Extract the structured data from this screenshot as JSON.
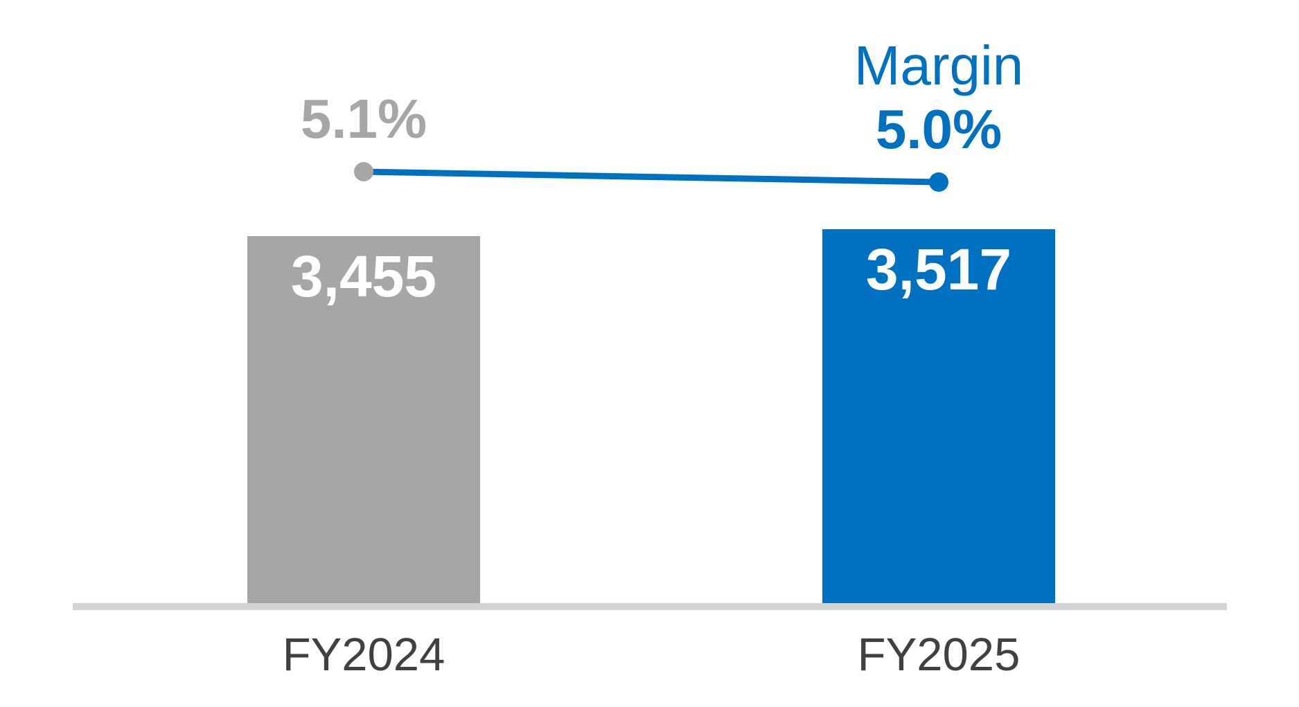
{
  "chart_data": {
    "type": "bar",
    "subtype": "bars-with-line-overlay",
    "categories": [
      "FY2024",
      "FY2025"
    ],
    "series": [
      {
        "type": "bar",
        "values": [
          3455,
          3517
        ],
        "data_labels": [
          "3,455",
          "3,517"
        ],
        "colors": [
          "#a6a6a6",
          "#0070c0"
        ]
      },
      {
        "name": "Margin",
        "type": "line",
        "values": [
          5.1,
          5.0
        ],
        "data_labels": [
          "5.1%",
          "5.0%"
        ],
        "label_colors": [
          "#a6a6a6",
          "#0070c0"
        ],
        "line_color": "#0070c0",
        "marker_colors": [
          "#a6a6a6",
          "#0070c0"
        ]
      }
    ],
    "title": "",
    "xlabel": "",
    "ylabel": "",
    "grid": false,
    "legend_position": "margin title stacked above right line marker",
    "value_label_position": "inside bar top",
    "bar_value_label_color": "#ffffff",
    "category_label_color": "#404040",
    "axis_line_color": "#d3d3d3",
    "background_color": "#ffffff"
  }
}
